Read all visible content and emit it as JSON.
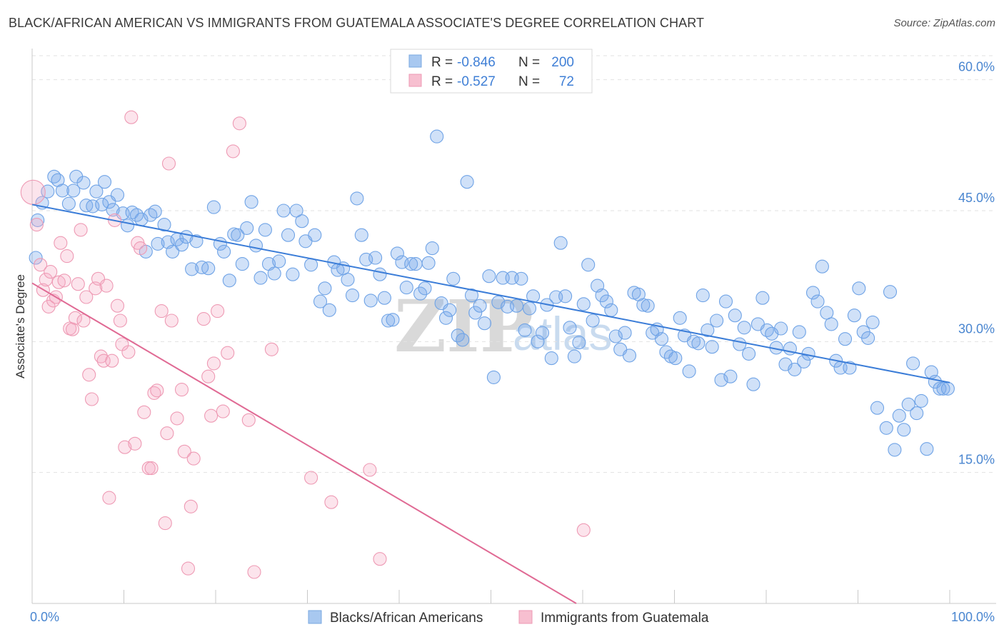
{
  "title": "BLACK/AFRICAN AMERICAN VS IMMIGRANTS FROM GUATEMALA ASSOCIATE'S DEGREE CORRELATION CHART",
  "source": "Source: ZipAtlas.com",
  "watermark": {
    "zip": "ZIP",
    "atlas": "atlas"
  },
  "stats": {
    "r_label": "R =",
    "n_label": "N =",
    "rows": [
      {
        "r": "-0.846",
        "n": "200",
        "color": "#a8c8f0"
      },
      {
        "r": "-0.527",
        "n": "72",
        "color": "#f7bfd0"
      }
    ]
  },
  "chart_data": {
    "type": "scatter",
    "xlabel": "",
    "ylabel": "Associate's Degree",
    "xlim": [
      0,
      100
    ],
    "ylim": [
      0,
      63
    ],
    "y_ticks": [
      {
        "v": 15,
        "label": "15.0%"
      },
      {
        "v": 30,
        "label": "30.0%"
      },
      {
        "v": 45,
        "label": "45.0%"
      },
      {
        "v": 60,
        "label": "60.0%"
      }
    ],
    "x_tick_labels": [
      {
        "v": 0,
        "label": "0.0%"
      },
      {
        "v": 100,
        "label": "100.0%"
      }
    ],
    "x_minor_ticks": [
      0,
      10,
      20,
      30,
      40,
      50,
      60,
      70,
      80,
      90,
      100
    ],
    "grid": true,
    "legend_position": "bottom-center",
    "series": [
      {
        "name": "Blacks/African Americans",
        "color": "#6fa3e6",
        "fill": "rgba(120,170,235,0.35)",
        "trend": {
          "x0": 0,
          "y0": 45.7,
          "x1": 100,
          "y1": 25.3,
          "color": "#3b7dd8"
        },
        "points": [
          [
            0.4,
            39.6
          ],
          [
            0.6,
            43.9
          ],
          [
            1.1,
            45.9
          ],
          [
            1.7,
            47.2
          ],
          [
            2.4,
            48.9
          ],
          [
            2.8,
            48.5
          ],
          [
            3.3,
            47.3
          ],
          [
            4.0,
            45.8
          ],
          [
            4.5,
            47.3
          ],
          [
            4.8,
            48.9
          ],
          [
            5.6,
            48.2
          ],
          [
            5.9,
            45.6
          ],
          [
            6.6,
            45.5
          ],
          [
            7.0,
            47.2
          ],
          [
            7.6,
            45.7
          ],
          [
            7.9,
            48.3
          ],
          [
            8.4,
            46.0
          ],
          [
            8.8,
            45.1
          ],
          [
            9.3,
            46.8
          ],
          [
            9.9,
            44.7
          ],
          [
            10.4,
            43.3
          ],
          [
            10.9,
            44.8
          ],
          [
            11.4,
            44.5
          ],
          [
            11.9,
            44.0
          ],
          [
            12.4,
            40.3
          ],
          [
            12.9,
            44.5
          ],
          [
            13.4,
            44.9
          ],
          [
            13.7,
            41.2
          ],
          [
            14.4,
            43.4
          ],
          [
            14.8,
            41.4
          ],
          [
            15.3,
            40.3
          ],
          [
            15.8,
            41.7
          ],
          [
            16.3,
            41.1
          ],
          [
            16.8,
            42.0
          ],
          [
            17.4,
            38.3
          ],
          [
            17.9,
            41.5
          ],
          [
            18.5,
            38.5
          ],
          [
            19.2,
            38.4
          ],
          [
            19.8,
            45.4
          ],
          [
            20.5,
            41.2
          ],
          [
            20.9,
            40.3
          ],
          [
            21.5,
            37.0
          ],
          [
            22.0,
            42.3
          ],
          [
            22.4,
            42.2
          ],
          [
            22.9,
            38.9
          ],
          [
            23.4,
            43.0
          ],
          [
            23.9,
            46.0
          ],
          [
            24.4,
            41.0
          ],
          [
            24.9,
            37.3
          ],
          [
            25.4,
            42.8
          ],
          [
            25.8,
            38.9
          ],
          [
            26.4,
            37.8
          ],
          [
            26.9,
            39.2
          ],
          [
            27.4,
            45.0
          ],
          [
            27.9,
            42.2
          ],
          [
            28.4,
            37.7
          ],
          [
            28.8,
            45.0
          ],
          [
            29.4,
            43.8
          ],
          [
            29.8,
            41.5
          ],
          [
            30.4,
            38.8
          ],
          [
            30.8,
            42.2
          ],
          [
            31.4,
            34.6
          ],
          [
            31.9,
            36.1
          ],
          [
            32.4,
            33.6
          ],
          [
            32.9,
            39.1
          ],
          [
            33.3,
            38.2
          ],
          [
            33.9,
            38.4
          ],
          [
            34.4,
            37.1
          ],
          [
            34.9,
            35.3
          ],
          [
            35.4,
            46.4
          ],
          [
            35.9,
            42.2
          ],
          [
            36.4,
            39.4
          ],
          [
            36.9,
            34.7
          ],
          [
            37.4,
            39.6
          ],
          [
            37.9,
            37.7
          ],
          [
            38.4,
            35.0
          ],
          [
            38.8,
            32.4
          ],
          [
            39.3,
            32.5
          ],
          [
            39.8,
            40.1
          ],
          [
            40.3,
            39.1
          ],
          [
            40.8,
            36.2
          ],
          [
            41.3,
            38.9
          ],
          [
            41.8,
            38.9
          ],
          [
            42.3,
            35.5
          ],
          [
            42.8,
            36.1
          ],
          [
            43.2,
            39.0
          ],
          [
            43.6,
            40.7
          ],
          [
            44.1,
            53.5
          ],
          [
            44.6,
            34.4
          ],
          [
            45.1,
            32.7
          ],
          [
            45.5,
            33.6
          ],
          [
            45.9,
            37.2
          ],
          [
            46.4,
            30.7
          ],
          [
            46.9,
            30.2
          ],
          [
            47.4,
            48.3
          ],
          [
            47.9,
            35.3
          ],
          [
            48.3,
            33.3
          ],
          [
            48.8,
            34.1
          ],
          [
            49.3,
            32.1
          ],
          [
            49.8,
            37.5
          ],
          [
            50.3,
            25.9
          ],
          [
            50.8,
            34.5
          ],
          [
            51.3,
            37.3
          ],
          [
            51.8,
            34.0
          ],
          [
            52.3,
            37.3
          ],
          [
            52.8,
            34.1
          ],
          [
            53.3,
            37.2
          ],
          [
            53.7,
            31.3
          ],
          [
            54.2,
            33.8
          ],
          [
            54.6,
            35.2
          ],
          [
            55.1,
            30.0
          ],
          [
            55.6,
            31.0
          ],
          [
            56.1,
            34.2
          ],
          [
            56.6,
            28.1
          ],
          [
            57.1,
            35.1
          ],
          [
            57.6,
            41.3
          ],
          [
            58.1,
            35.2
          ],
          [
            58.6,
            31.6
          ],
          [
            59.1,
            28.3
          ],
          [
            59.6,
            29.9
          ],
          [
            60.1,
            34.3
          ],
          [
            60.6,
            38.8
          ],
          [
            61.1,
            32.4
          ],
          [
            61.6,
            36.4
          ],
          [
            62.1,
            35.3
          ],
          [
            62.6,
            34.6
          ],
          [
            63.1,
            33.6
          ],
          [
            63.6,
            30.6
          ],
          [
            64.1,
            29.1
          ],
          [
            64.6,
            31.0
          ],
          [
            65.1,
            28.4
          ],
          [
            65.6,
            35.6
          ],
          [
            66.1,
            35.4
          ],
          [
            66.6,
            34.2
          ],
          [
            67.1,
            34.1
          ],
          [
            67.6,
            31.0
          ],
          [
            68.1,
            31.4
          ],
          [
            68.6,
            30.3
          ],
          [
            69.1,
            28.8
          ],
          [
            69.6,
            28.3
          ],
          [
            70.1,
            28.1
          ],
          [
            70.6,
            32.7
          ],
          [
            71.1,
            30.7
          ],
          [
            71.6,
            26.6
          ],
          [
            72.1,
            30.0
          ],
          [
            72.6,
            29.8
          ],
          [
            73.1,
            35.3
          ],
          [
            73.6,
            31.3
          ],
          [
            74.1,
            29.4
          ],
          [
            74.6,
            32.4
          ],
          [
            75.1,
            25.6
          ],
          [
            75.6,
            34.6
          ],
          [
            76.1,
            26.0
          ],
          [
            76.6,
            33.0
          ],
          [
            77.1,
            29.7
          ],
          [
            77.6,
            31.6
          ],
          [
            78.1,
            28.6
          ],
          [
            78.6,
            25.1
          ],
          [
            79.1,
            32.0
          ],
          [
            79.6,
            35.0
          ],
          [
            80.1,
            31.3
          ],
          [
            80.6,
            30.9
          ],
          [
            81.1,
            29.3
          ],
          [
            81.6,
            31.5
          ],
          [
            82.1,
            27.4
          ],
          [
            82.6,
            29.2
          ],
          [
            83.1,
            26.8
          ],
          [
            83.6,
            31.1
          ],
          [
            84.1,
            27.7
          ],
          [
            84.6,
            28.6
          ],
          [
            85.1,
            35.6
          ],
          [
            85.6,
            34.6
          ],
          [
            86.1,
            38.6
          ],
          [
            86.6,
            33.3
          ],
          [
            87.1,
            32.0
          ],
          [
            87.6,
            27.8
          ],
          [
            88.1,
            27.0
          ],
          [
            88.6,
            30.3
          ],
          [
            89.1,
            27.0
          ],
          [
            89.6,
            33.0
          ],
          [
            90.1,
            36.1
          ],
          [
            90.6,
            31.1
          ],
          [
            91.1,
            30.4
          ],
          [
            91.6,
            32.2
          ],
          [
            92.1,
            22.4
          ],
          [
            93.1,
            20.1
          ],
          [
            93.5,
            35.7
          ],
          [
            94.0,
            17.6
          ],
          [
            94.5,
            21.5
          ],
          [
            95.0,
            19.9
          ],
          [
            95.5,
            22.8
          ],
          [
            96.0,
            27.5
          ],
          [
            96.4,
            21.8
          ],
          [
            96.9,
            23.2
          ],
          [
            97.5,
            17.7
          ],
          [
            98.0,
            26.5
          ],
          [
            98.4,
            25.4
          ],
          [
            98.9,
            24.6
          ],
          [
            99.3,
            24.6
          ],
          [
            99.8,
            24.6
          ]
        ]
      },
      {
        "name": "Immigrants from Guatemala",
        "color": "#ee9ab4",
        "fill": "rgba(245,170,195,0.32)",
        "trend": {
          "x0": 0,
          "y0": 36.7,
          "x1": 59.3,
          "y1": 0.0,
          "color": "#e06a94"
        },
        "points": [
          [
            0.1,
            47.1
          ],
          [
            0.5,
            43.4
          ],
          [
            0.9,
            38.8
          ],
          [
            1.2,
            35.9
          ],
          [
            1.5,
            37.1
          ],
          [
            1.8,
            34.0
          ],
          [
            2.0,
            38.0
          ],
          [
            2.3,
            34.7
          ],
          [
            2.6,
            35.1
          ],
          [
            2.9,
            36.8
          ],
          [
            3.1,
            41.3
          ],
          [
            3.5,
            37.0
          ],
          [
            3.8,
            39.8
          ],
          [
            4.1,
            31.5
          ],
          [
            4.4,
            31.4
          ],
          [
            4.7,
            32.7
          ],
          [
            5.0,
            36.6
          ],
          [
            5.3,
            42.8
          ],
          [
            5.6,
            32.4
          ],
          [
            5.9,
            35.1
          ],
          [
            6.2,
            26.2
          ],
          [
            6.5,
            23.4
          ],
          [
            6.9,
            36.1
          ],
          [
            7.2,
            37.2
          ],
          [
            7.5,
            28.3
          ],
          [
            7.8,
            27.8
          ],
          [
            8.1,
            36.4
          ],
          [
            8.4,
            12.1
          ],
          [
            8.7,
            27.8
          ],
          [
            9.0,
            43.9
          ],
          [
            9.3,
            34.1
          ],
          [
            9.6,
            32.4
          ],
          [
            9.8,
            29.7
          ],
          [
            10.1,
            17.9
          ],
          [
            10.5,
            28.8
          ],
          [
            10.8,
            55.7
          ],
          [
            11.2,
            18.3
          ],
          [
            11.5,
            41.3
          ],
          [
            11.8,
            40.7
          ],
          [
            12.2,
            21.9
          ],
          [
            12.7,
            15.5
          ],
          [
            13.0,
            15.5
          ],
          [
            13.3,
            24.1
          ],
          [
            13.6,
            24.4
          ],
          [
            14.1,
            33.5
          ],
          [
            14.5,
            9.2
          ],
          [
            14.7,
            19.5
          ],
          [
            14.9,
            50.4
          ],
          [
            15.2,
            32.4
          ],
          [
            15.8,
            21.2
          ],
          [
            16.3,
            24.5
          ],
          [
            16.6,
            17.4
          ],
          [
            17.0,
            4.0
          ],
          [
            17.3,
            11.1
          ],
          [
            17.6,
            16.6
          ],
          [
            18.7,
            32.6
          ],
          [
            19.2,
            26.0
          ],
          [
            19.5,
            21.5
          ],
          [
            19.8,
            27.5
          ],
          [
            20.2,
            33.5
          ],
          [
            20.8,
            22.0
          ],
          [
            21.3,
            28.7
          ],
          [
            21.9,
            51.8
          ],
          [
            22.6,
            55.0
          ],
          [
            23.6,
            21.0
          ],
          [
            24.2,
            3.6
          ],
          [
            26.1,
            29.1
          ],
          [
            30.4,
            14.4
          ],
          [
            32.6,
            11.6
          ],
          [
            36.8,
            15.3
          ],
          [
            37.9,
            5.1
          ],
          [
            60.1,
            8.4
          ]
        ]
      }
    ]
  }
}
